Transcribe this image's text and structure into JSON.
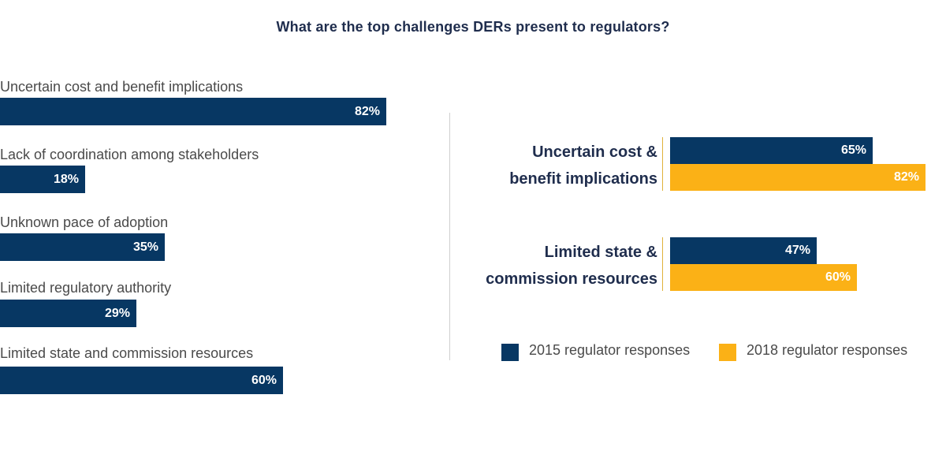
{
  "colors": {
    "navy": "#073763",
    "gold": "#fbb116",
    "divider": "#cfcfcf"
  },
  "chart_data": [
    {
      "type": "bar",
      "title": "What are the top challenges DERs present to regulators?",
      "orientation": "horizontal",
      "categories": [
        "Uncertain cost and benefit implications",
        "Lack of coordination among stakeholders",
        "Unknown pace of adoption",
        "Limited regulatory authority",
        "Limited state and commission resources"
      ],
      "values": [
        82,
        18,
        35,
        29,
        60
      ],
      "value_labels": [
        "82%",
        "18%",
        "35%",
        "29%",
        "60%"
      ],
      "xlim": [
        0,
        100
      ]
    },
    {
      "type": "bar",
      "orientation": "horizontal",
      "categories": [
        [
          "Uncertain cost &",
          "benefit implications"
        ],
        [
          "Limited state &",
          "commission resources"
        ]
      ],
      "series": [
        {
          "name": "2015 regulator responses",
          "values": [
            65,
            47
          ],
          "value_labels": [
            "65%",
            "47%"
          ]
        },
        {
          "name": "2018 regulator responses",
          "values": [
            82,
            60
          ],
          "value_labels": [
            "82%",
            "60%"
          ]
        }
      ],
      "xlim": [
        0,
        100
      ],
      "legend": "bottom"
    }
  ]
}
